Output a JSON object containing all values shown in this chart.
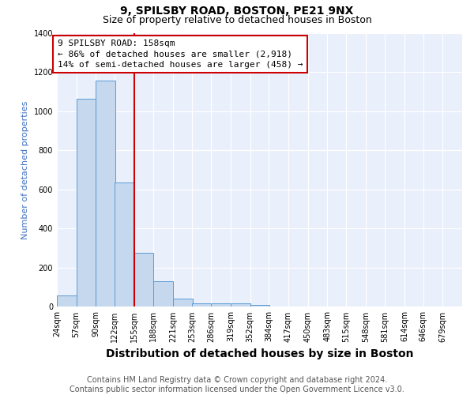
{
  "title": "9, SPILSBY ROAD, BOSTON, PE21 9NX",
  "subtitle": "Size of property relative to detached houses in Boston",
  "xlabel": "Distribution of detached houses by size in Boston",
  "ylabel": "Number of detached properties",
  "footer_line1": "Contains HM Land Registry data © Crown copyright and database right 2024.",
  "footer_line2": "Contains public sector information licensed under the Open Government Licence v3.0.",
  "annotation_line1": "9 SPILSBY ROAD: 158sqm",
  "annotation_line2": "← 86% of detached houses are smaller (2,918)",
  "annotation_line3": "14% of semi-detached houses are larger (458) →",
  "bar_color": "#c5d8ee",
  "bar_edge_color": "#5b9bd5",
  "vline_color": "#cc0000",
  "vline_x_bin_index": 4,
  "annotation_box_edgecolor": "#cc0000",
  "bins_left": [
    24,
    57,
    90,
    122,
    155,
    188,
    221,
    253,
    286,
    319,
    352,
    384,
    417,
    450,
    483,
    515,
    548,
    581,
    614,
    646
  ],
  "bin_width": 33,
  "bin_labels": [
    "24sqm",
    "57sqm",
    "90sqm",
    "122sqm",
    "155sqm",
    "188sqm",
    "221sqm",
    "253sqm",
    "286sqm",
    "319sqm",
    "352sqm",
    "384sqm",
    "417sqm",
    "450sqm",
    "483sqm",
    "515sqm",
    "548sqm",
    "581sqm",
    "614sqm",
    "646sqm",
    "679sqm"
  ],
  "counts": [
    60,
    1065,
    1155,
    635,
    275,
    130,
    42,
    18,
    18,
    18,
    10,
    0,
    0,
    0,
    0,
    0,
    0,
    0,
    0,
    0
  ],
  "ylim": [
    0,
    1400
  ],
  "yticks": [
    0,
    200,
    400,
    600,
    800,
    1000,
    1200,
    1400
  ],
  "xlim_left": 24,
  "xlim_right": 679,
  "bg_color": "#eaf0fb",
  "fig_bg_color": "#ffffff",
  "grid_color": "#ffffff",
  "title_fontsize": 10,
  "subtitle_fontsize": 9,
  "xlabel_fontsize": 10,
  "ylabel_fontsize": 8,
  "tick_fontsize": 7,
  "footer_fontsize": 7,
  "annotation_fontsize": 8
}
